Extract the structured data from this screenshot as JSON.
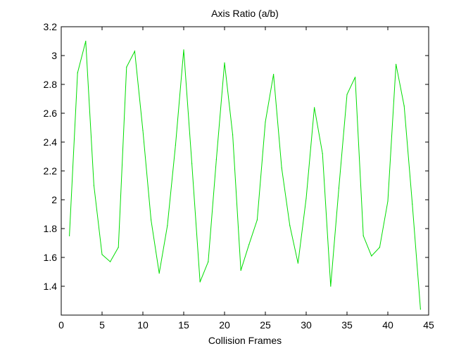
{
  "chart_data": {
    "type": "line",
    "title": "Axis Ratio (a/b)",
    "xlabel": "Collision Frames",
    "ylabel": "",
    "xlim": [
      0,
      45
    ],
    "ylim": [
      1.2,
      3.2
    ],
    "xticks": [
      0,
      5,
      10,
      15,
      20,
      25,
      30,
      35,
      40,
      45
    ],
    "yticks": [
      1.4,
      1.6,
      1.8,
      2,
      2.2,
      2.4,
      2.6,
      2.8,
      3,
      3.2
    ],
    "xtick_labels": [
      "0",
      "5",
      "10",
      "15",
      "20",
      "25",
      "30",
      "35",
      "40",
      "45"
    ],
    "ytick_labels": [
      "1.4",
      "1.6",
      "1.8",
      "2",
      "2.2",
      "2.4",
      "2.6",
      "2.8",
      "3",
      "3.2"
    ],
    "grid": false,
    "legend": "none",
    "series": [
      {
        "color": "#00dd00",
        "x": [
          1,
          2,
          3,
          4,
          5,
          6,
          7,
          8,
          9,
          10,
          11,
          12,
          13,
          14,
          15,
          16,
          17,
          18,
          19,
          20,
          21,
          22,
          23,
          24,
          25,
          26,
          27,
          28,
          29,
          30,
          31,
          32,
          33,
          34,
          35,
          36,
          37,
          38,
          39,
          40,
          41,
          42,
          43,
          44
        ],
        "values": [
          1.75,
          2.88,
          3.1,
          2.1,
          1.62,
          1.57,
          1.67,
          2.92,
          3.03,
          2.48,
          1.86,
          1.49,
          1.82,
          2.38,
          3.04,
          2.25,
          1.43,
          1.57,
          2.28,
          2.95,
          2.45,
          1.51,
          1.69,
          1.86,
          2.54,
          2.87,
          2.22,
          1.82,
          1.56,
          2.01,
          2.64,
          2.32,
          1.4,
          2.08,
          2.73,
          2.85,
          1.75,
          1.61,
          1.67,
          1.99,
          2.94,
          2.65,
          1.97,
          1.24
        ]
      }
    ]
  }
}
